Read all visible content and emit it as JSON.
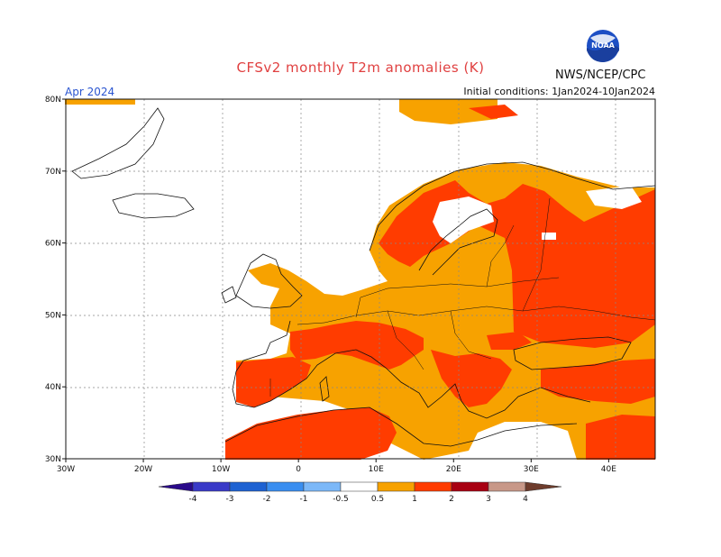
{
  "title": "CFSv2 monthly T2m anomalies (K)",
  "organization": "NWS/NCEP/CPC",
  "logo": {
    "text": "NOAA",
    "icon": "noaa-logo"
  },
  "month_label": "Apr 2024",
  "initial_conditions": "Initial conditions: 1Jan2024-10Jan2024",
  "map": {
    "lon_range": [
      -30,
      45
    ],
    "lat_range": [
      30,
      80
    ],
    "lon_labels": [
      "30W",
      "20W",
      "10W",
      "0",
      "10E",
      "20E",
      "30E",
      "40E"
    ],
    "lat_labels": [
      "30N",
      "40N",
      "50N",
      "60N",
      "70N",
      "80N"
    ],
    "gridlines": true
  },
  "colorbar": {
    "labels": [
      "-4",
      "-3",
      "-2",
      "-1",
      "-0.5",
      "0.5",
      "1",
      "2",
      "3",
      "4"
    ],
    "colors": {
      "lt_-4": "#2a0a8a",
      "-4_-3": "#3a3ac8",
      "-3_-2": "#1e62d2",
      "-2_-1": "#3a8ef0",
      "-1_-0.5": "#7cb8f8",
      "-0.5_0.5": "#ffffff",
      "0.5_1": "#f7a200",
      "1_2": "#ff3c00",
      "2_3": "#a80012",
      "3_4": "#c89888",
      "gt_4": "#6e3c2c"
    }
  }
}
